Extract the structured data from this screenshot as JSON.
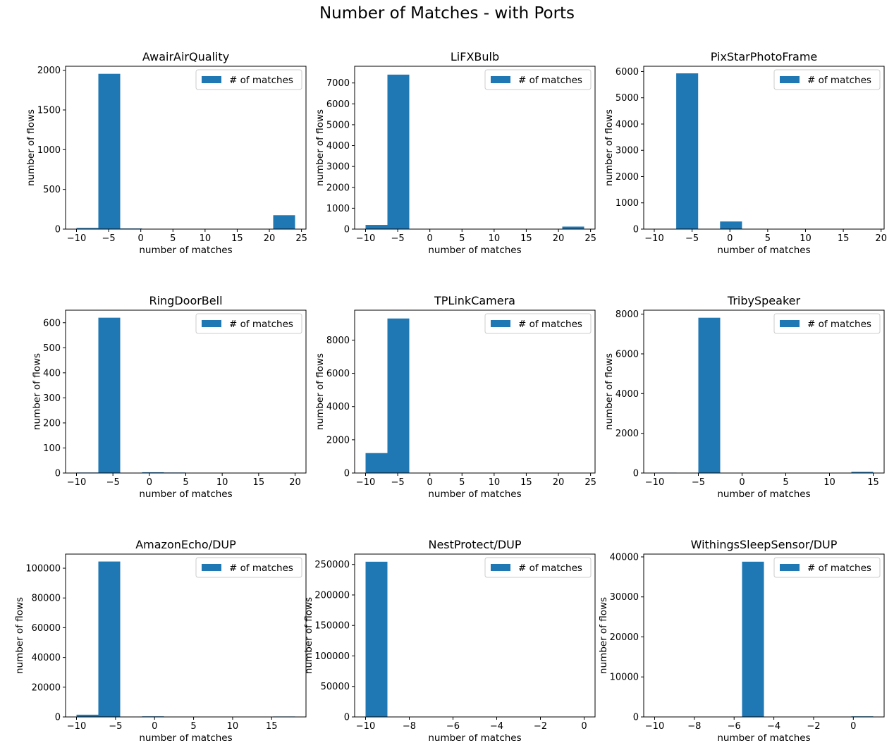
{
  "suptitle": "Number of Matches - with Ports",
  "colors": {
    "bar": "#1f77b4"
  },
  "chart_data": [
    {
      "type": "bar",
      "title": "AwairAirQuality",
      "xlabel": "number of matches",
      "ylabel": "number of flows",
      "legend": "# of matches",
      "legend_loc": "top-right",
      "xlim": [
        -11.7,
        25.7
      ],
      "ylim": [
        0,
        2050
      ],
      "xticks": [
        -10,
        -5,
        0,
        5,
        10,
        15,
        20,
        25
      ],
      "yticks": [
        0,
        500,
        1000,
        1500,
        2000
      ],
      "bins": [
        {
          "x0": -10,
          "x1": -6.6,
          "value": 15
        },
        {
          "x0": -6.6,
          "x1": -3.2,
          "value": 1955
        },
        {
          "x0": -3.2,
          "x1": 0.2,
          "value": 8
        },
        {
          "x0": 0.2,
          "x1": 3.6,
          "value": 0
        },
        {
          "x0": 3.6,
          "x1": 7.0,
          "value": 0
        },
        {
          "x0": 7.0,
          "x1": 10.4,
          "value": 0
        },
        {
          "x0": 10.4,
          "x1": 13.8,
          "value": 0
        },
        {
          "x0": 13.8,
          "x1": 17.2,
          "value": 0
        },
        {
          "x0": 17.2,
          "x1": 20.6,
          "value": 0
        },
        {
          "x0": 20.6,
          "x1": 24.0,
          "value": 175
        }
      ]
    },
    {
      "type": "bar",
      "title": "LiFXBulb",
      "xlabel": "number of matches",
      "ylabel": "number of flows",
      "legend": "# of matches",
      "legend_loc": "top-right",
      "xlim": [
        -11.7,
        25.7
      ],
      "ylim": [
        0,
        7800
      ],
      "xticks": [
        -10,
        -5,
        0,
        5,
        10,
        15,
        20,
        25
      ],
      "yticks": [
        0,
        1000,
        2000,
        3000,
        4000,
        5000,
        6000,
        7000
      ],
      "bins": [
        {
          "x0": -10,
          "x1": -6.6,
          "value": 200
        },
        {
          "x0": -6.6,
          "x1": -3.2,
          "value": 7400
        },
        {
          "x0": -3.2,
          "x1": 0.2,
          "value": 0
        },
        {
          "x0": 0.2,
          "x1": 3.6,
          "value": 0
        },
        {
          "x0": 3.6,
          "x1": 7.0,
          "value": 0
        },
        {
          "x0": 7.0,
          "x1": 10.4,
          "value": 0
        },
        {
          "x0": 10.4,
          "x1": 13.8,
          "value": 0
        },
        {
          "x0": 13.8,
          "x1": 17.2,
          "value": 0
        },
        {
          "x0": 17.2,
          "x1": 20.6,
          "value": 0
        },
        {
          "x0": 20.6,
          "x1": 24.0,
          "value": 120
        }
      ]
    },
    {
      "type": "bar",
      "title": "PixStarPhotoFrame",
      "xlabel": "number of matches",
      "ylabel": "number of flows",
      "legend": "# of matches",
      "legend_loc": "top-right",
      "xlim": [
        -11.4,
        20.4
      ],
      "ylim": [
        0,
        6200
      ],
      "xticks": [
        -10,
        -5,
        0,
        5,
        10,
        15,
        20
      ],
      "yticks": [
        0,
        1000,
        2000,
        3000,
        4000,
        5000,
        6000
      ],
      "bins": [
        {
          "x0": -10,
          "x1": -7.1,
          "value": 0
        },
        {
          "x0": -7.1,
          "x1": -4.2,
          "value": 5930
        },
        {
          "x0": -4.2,
          "x1": -1.3,
          "value": 0
        },
        {
          "x0": -1.3,
          "x1": 1.6,
          "value": 290
        },
        {
          "x0": 1.6,
          "x1": 4.5,
          "value": 0
        },
        {
          "x0": 4.5,
          "x1": 7.4,
          "value": 0
        },
        {
          "x0": 7.4,
          "x1": 10.3,
          "value": 0
        },
        {
          "x0": 10.3,
          "x1": 13.2,
          "value": 0
        },
        {
          "x0": 13.2,
          "x1": 16.1,
          "value": 0
        },
        {
          "x0": 16.1,
          "x1": 19.0,
          "value": 0
        }
      ]
    },
    {
      "type": "bar",
      "title": "RingDoorBell",
      "xlabel": "number of matches",
      "ylabel": "number of flows",
      "legend": "# of matches",
      "legend_loc": "top-right",
      "xlim": [
        -11.5,
        21.5
      ],
      "ylim": [
        0,
        650
      ],
      "xticks": [
        -10,
        -5,
        0,
        5,
        10,
        15,
        20
      ],
      "yticks": [
        0,
        100,
        200,
        300,
        400,
        500,
        600
      ],
      "bins": [
        {
          "x0": -10,
          "x1": -7,
          "value": 2
        },
        {
          "x0": -7,
          "x1": -4,
          "value": 620
        },
        {
          "x0": -4,
          "x1": -1,
          "value": 0
        },
        {
          "x0": -1,
          "x1": 2,
          "value": 3
        },
        {
          "x0": 2,
          "x1": 5,
          "value": 2
        },
        {
          "x0": 5,
          "x1": 8,
          "value": 0
        },
        {
          "x0": 8,
          "x1": 11,
          "value": 0
        },
        {
          "x0": 11,
          "x1": 14,
          "value": 0
        },
        {
          "x0": 14,
          "x1": 17,
          "value": 0
        },
        {
          "x0": 17,
          "x1": 20,
          "value": 0
        }
      ]
    },
    {
      "type": "bar",
      "title": "TPLinkCamera",
      "xlabel": "number of matches",
      "ylabel": "number of flows",
      "legend": "# of matches",
      "legend_loc": "top-right",
      "xlim": [
        -11.7,
        25.7
      ],
      "ylim": [
        0,
        9800
      ],
      "xticks": [
        -10,
        -5,
        0,
        5,
        10,
        15,
        20,
        25
      ],
      "yticks": [
        0,
        2000,
        4000,
        6000,
        8000
      ],
      "bins": [
        {
          "x0": -10,
          "x1": -6.6,
          "value": 1200
        },
        {
          "x0": -6.6,
          "x1": -3.2,
          "value": 9300
        },
        {
          "x0": -3.2,
          "x1": 0.2,
          "value": 0
        },
        {
          "x0": 0.2,
          "x1": 3.6,
          "value": 0
        },
        {
          "x0": 3.6,
          "x1": 7.0,
          "value": 0
        },
        {
          "x0": 7.0,
          "x1": 10.4,
          "value": 0
        },
        {
          "x0": 10.4,
          "x1": 13.8,
          "value": 0
        },
        {
          "x0": 13.8,
          "x1": 17.2,
          "value": 0
        },
        {
          "x0": 17.2,
          "x1": 20.6,
          "value": 0
        },
        {
          "x0": 20.6,
          "x1": 24.0,
          "value": 0
        }
      ]
    },
    {
      "type": "bar",
      "title": "TribySpeaker",
      "xlabel": "number of matches",
      "ylabel": "number of flows",
      "legend": "# of matches",
      "legend_loc": "top-right",
      "xlim": [
        -11.25,
        16.25
      ],
      "ylim": [
        0,
        8200
      ],
      "xticks": [
        -10,
        -5,
        0,
        5,
        10,
        15
      ],
      "yticks": [
        0,
        2000,
        4000,
        6000,
        8000
      ],
      "bins": [
        {
          "x0": -10,
          "x1": -7.5,
          "value": 20
        },
        {
          "x0": -7.5,
          "x1": -5.0,
          "value": 0
        },
        {
          "x0": -5.0,
          "x1": -2.5,
          "value": 7820
        },
        {
          "x0": -2.5,
          "x1": 0,
          "value": 0
        },
        {
          "x0": 0,
          "x1": 2.5,
          "value": 0
        },
        {
          "x0": 2.5,
          "x1": 5.0,
          "value": 0
        },
        {
          "x0": 5.0,
          "x1": 7.5,
          "value": 0
        },
        {
          "x0": 7.5,
          "x1": 10.0,
          "value": 0
        },
        {
          "x0": 10.0,
          "x1": 12.5,
          "value": 0
        },
        {
          "x0": 12.5,
          "x1": 15.0,
          "value": 60
        }
      ]
    },
    {
      "type": "bar",
      "title": "AmazonEcho/DUP",
      "xlabel": "number of matches",
      "ylabel": "number of flows",
      "legend": "# of matches",
      "legend_loc": "top-right",
      "xlim": [
        -11.4,
        19.4
      ],
      "ylim": [
        0,
        109500
      ],
      "xticks": [
        -10,
        -5,
        0,
        5,
        10,
        15
      ],
      "yticks": [
        0,
        20000,
        40000,
        60000,
        80000,
        100000
      ],
      "bins": [
        {
          "x0": -10,
          "x1": -7.2,
          "value": 1500
        },
        {
          "x0": -7.2,
          "x1": -4.4,
          "value": 104500
        },
        {
          "x0": -4.4,
          "x1": -1.6,
          "value": 0
        },
        {
          "x0": -1.6,
          "x1": 1.2,
          "value": 400
        },
        {
          "x0": 1.2,
          "x1": 4.0,
          "value": 0
        },
        {
          "x0": 4.0,
          "x1": 6.8,
          "value": 0
        },
        {
          "x0": 6.8,
          "x1": 9.6,
          "value": 0
        },
        {
          "x0": 9.6,
          "x1": 12.4,
          "value": 0
        },
        {
          "x0": 12.4,
          "x1": 15.2,
          "value": 0
        },
        {
          "x0": 15.2,
          "x1": 18.0,
          "value": 300
        }
      ]
    },
    {
      "type": "bar",
      "title": "NestProtect/DUP",
      "xlabel": "number of matches",
      "ylabel": "number of flows",
      "legend": "# of matches",
      "legend_loc": "top-right",
      "xlim": [
        -10.5,
        0.5
      ],
      "ylim": [
        0,
        267000
      ],
      "xticks": [
        -10,
        -8,
        -6,
        -4,
        -2,
        0
      ],
      "yticks": [
        0,
        50000,
        100000,
        150000,
        200000,
        250000
      ],
      "bins": [
        {
          "x0": -10,
          "x1": -9,
          "value": 254500
        },
        {
          "x0": -9,
          "x1": -8,
          "value": 0
        },
        {
          "x0": -8,
          "x1": -7,
          "value": 0
        },
        {
          "x0": -7,
          "x1": -6,
          "value": 0
        },
        {
          "x0": -6,
          "x1": -5,
          "value": 0
        },
        {
          "x0": -5,
          "x1": -4,
          "value": 0
        },
        {
          "x0": -4,
          "x1": -3,
          "value": 0
        },
        {
          "x0": -3,
          "x1": -2,
          "value": 0
        },
        {
          "x0": -2,
          "x1": -1,
          "value": 0
        },
        {
          "x0": -1,
          "x1": 0,
          "value": 0
        }
      ]
    },
    {
      "type": "bar",
      "title": "WithingsSleepSensor/DUP",
      "xlabel": "number of matches",
      "ylabel": "number of flows",
      "legend": "# of matches",
      "legend_loc": "top-right",
      "xlim": [
        -10.55,
        1.55
      ],
      "ylim": [
        0,
        40700
      ],
      "xticks": [
        -10,
        -8,
        -6,
        -4,
        -2,
        0
      ],
      "yticks": [
        0,
        10000,
        20000,
        30000,
        40000
      ],
      "bins": [
        {
          "x0": -10,
          "x1": -8.9,
          "value": 0
        },
        {
          "x0": -8.9,
          "x1": -7.8,
          "value": 0
        },
        {
          "x0": -7.8,
          "x1": -6.7,
          "value": 0
        },
        {
          "x0": -6.7,
          "x1": -5.6,
          "value": 0
        },
        {
          "x0": -5.6,
          "x1": -4.5,
          "value": 38800
        },
        {
          "x0": -4.5,
          "x1": -3.4,
          "value": 0
        },
        {
          "x0": -3.4,
          "x1": -2.3,
          "value": 0
        },
        {
          "x0": -2.3,
          "x1": -1.2,
          "value": 0
        },
        {
          "x0": -1.2,
          "x1": -0.1,
          "value": 0
        },
        {
          "x0": -0.1,
          "x1": 1.0,
          "value": 150
        }
      ]
    }
  ]
}
